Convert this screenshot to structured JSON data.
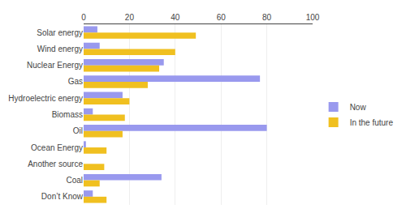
{
  "chart_data": {
    "type": "bar",
    "orientation": "horizontal",
    "categories": [
      "Solar energy",
      "Wind energy",
      "Nuclear Energy",
      "Gas",
      "Hydroelectric energy",
      "Biomass",
      "Oil",
      "Ocean Energy",
      "Another source",
      "Coal",
      "Don’t Know"
    ],
    "series": [
      {
        "name": "Now",
        "color": "#9999ee",
        "values": [
          6,
          7,
          35,
          77,
          17,
          4,
          80,
          1,
          0,
          34,
          4
        ]
      },
      {
        "name": "In the future",
        "color": "#f0c020",
        "values": [
          49,
          40,
          33,
          28,
          20,
          18,
          17,
          10,
          9,
          7,
          10
        ]
      }
    ],
    "xlim": [
      0,
      100
    ],
    "xticks": [
      0,
      20,
      40,
      60,
      80,
      100
    ],
    "grid": true,
    "legend": "right"
  }
}
